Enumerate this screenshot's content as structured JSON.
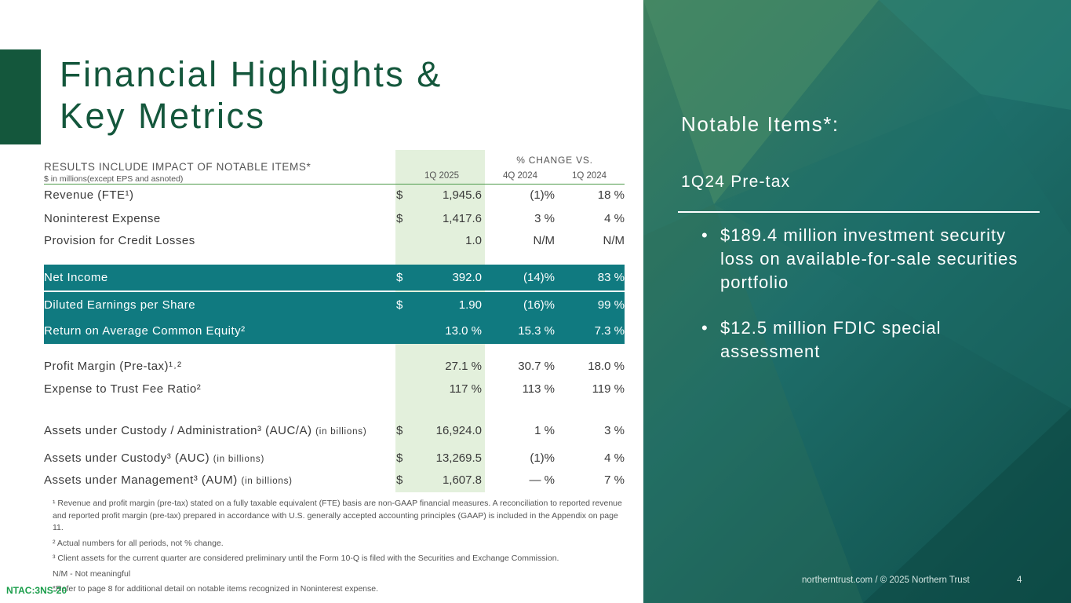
{
  "title": {
    "line1": "Financial Highlights &",
    "line2": "Key Metrics"
  },
  "table": {
    "header_label": "RESULTS INCLUDE IMPACT OF NOTABLE ITEMS*",
    "header_sub": "$ in millions(except EPS and asnoted)",
    "pct_change_label": "% CHANGE VS.",
    "columns": [
      "1Q 2025",
      "4Q 2024",
      "1Q 2024"
    ],
    "rows": [
      {
        "label": "Revenue (FTE¹)",
        "currency": "$",
        "v1": "1,945.6",
        "v2": "(1)%",
        "v3": "18 %"
      },
      {
        "label": "Noninterest Expense",
        "currency": "$",
        "v1": "1,417.6",
        "v2": "3 %",
        "v3": "4 %"
      },
      {
        "label": "Provision for Credit Losses",
        "currency": "",
        "v1": "1.0",
        "v2": "N/M",
        "v3": "N/M"
      },
      {
        "label": "Net Income",
        "currency": "$",
        "v1": "392.0",
        "v2": "(14)%",
        "v3": "83 %"
      },
      {
        "label": "Diluted Earnings per Share",
        "currency": "$",
        "v1": "1.90",
        "v2": "(16)%",
        "v3": "99 %"
      },
      {
        "label": "Return on Average Common Equity²",
        "currency": "",
        "v1": "13.0 %",
        "v2": "15.3 %",
        "v3": "7.3 %"
      },
      {
        "label": "Profit Margin (Pre-tax)¹˒²",
        "currency": "",
        "v1": "27.1 %",
        "v2": "30.7 %",
        "v3": "18.0 %"
      },
      {
        "label": "Expense to Trust Fee Ratio²",
        "currency": "",
        "v1": "117 %",
        "v2": "113 %",
        "v3": "119 %"
      },
      {
        "label": "Assets under Custody / Administration³ (AUC/A)",
        "suffix": "(in billions)",
        "currency": "$",
        "v1": "16,924.0",
        "v2": "1 %",
        "v3": "3 %"
      },
      {
        "label": "Assets under Custody³ (AUC)",
        "suffix": "(in billions)",
        "currency": "$",
        "v1": "13,269.5",
        "v2": "(1)%",
        "v3": "4 %"
      },
      {
        "label": "Assets under Management³ (AUM)",
        "suffix": "(in billions)",
        "currency": "$",
        "v1": "1,607.8",
        "v2": "— %",
        "v3": "7 %"
      }
    ]
  },
  "footnotes": [
    "¹ Revenue and profit margin (pre-tax) stated on a fully taxable equivalent (FTE) basis are non-GAAP financial measures. A reconciliation to reported revenue and reported profit margin (pre-tax) prepared in accordance with U.S. generally accepted accounting principles (GAAP) is included in the Appendix on page 11.",
    "² Actual numbers for all periods, not % change.",
    "³ Client assets for the current quarter are considered preliminary until the Form 10-Q is filed with the Securities and Exchange Commission.",
    "N/M - Not meaningful",
    "*Refer to page 8 for additional detail on notable items recognized in Noninterest expense."
  ],
  "doc_tag": "NTAC:3NS-20",
  "panel": {
    "title": "Notable Items*:",
    "subtitle": "1Q24 Pre-tax",
    "bullets": [
      "$189.4 million investment security loss on available-for-sale securities portfolio",
      "$12.5 million FDIC special assessment"
    ],
    "bullet_glyph": "•",
    "footer": "northerntrust.com / © 2025 Northern Trust",
    "page_number": "4"
  },
  "colors": {
    "brand_green": "#14573c",
    "band_teal": "#107a80",
    "column_highlight": "#e3f0dc",
    "tag_green": "#1b9e4b"
  }
}
